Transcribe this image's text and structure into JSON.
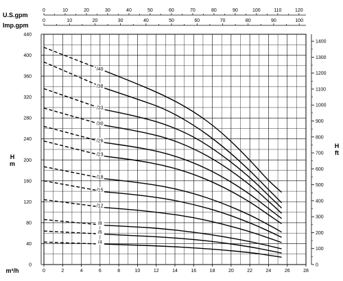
{
  "chart_data": {
    "type": "line",
    "grid": true,
    "xlabel": "m³/h",
    "ylabel_left": "H\nm",
    "ylabel_right": "H\nft",
    "x_ticks": [
      0,
      2,
      4,
      6,
      8,
      10,
      12,
      14,
      16,
      18,
      20,
      22,
      24,
      26,
      28
    ],
    "xlim": [
      0,
      28
    ],
    "y_left_ticks": [
      0,
      40,
      80,
      120,
      160,
      200,
      240,
      280,
      320,
      360,
      400,
      440
    ],
    "ylim_left": [
      0,
      440
    ],
    "y_right_ticks": [
      0,
      100,
      200,
      300,
      400,
      500,
      600,
      700,
      800,
      900,
      1000,
      1100,
      1200,
      1300,
      1400
    ],
    "ylim_right": [
      0,
      1443.6
    ],
    "top_axes": [
      {
        "label": "U.S.gpm",
        "ticks": [
          0,
          10,
          20,
          30,
          40,
          50,
          60,
          70,
          80,
          90,
          100,
          110,
          120
        ],
        "lim": [
          0,
          123.28
        ]
      },
      {
        "label": "Imp.gpm",
        "ticks": [
          0,
          10,
          20,
          30,
          40,
          50,
          60,
          70,
          80,
          90,
          100
        ],
        "lim": [
          0,
          102.65
        ]
      }
    ],
    "series": [
      {
        "name": "/40",
        "x": [
          0,
          6.5,
          10,
          13,
          16,
          19,
          22,
          24,
          25.4
        ],
        "y": [
          415,
          370,
          345,
          322,
          293,
          253,
          200,
          160,
          138
        ],
        "dashed_until": 6.5
      },
      {
        "name": "/38",
        "x": [
          0,
          6.5,
          10,
          13,
          16,
          19,
          22,
          24,
          25.4
        ],
        "y": [
          387,
          337,
          316,
          297,
          267,
          228,
          180,
          143,
          118
        ],
        "dashed_until": 6.5
      },
      {
        "name": "/33",
        "x": [
          0,
          6.5,
          10,
          13,
          16,
          19,
          22,
          24,
          25.4
        ],
        "y": [
          336,
          296,
          283,
          268,
          245,
          210,
          167,
          132,
          108
        ],
        "dashed_until": 6.5
      },
      {
        "name": "/30",
        "x": [
          0,
          6.5,
          10,
          13,
          16,
          19,
          22,
          24,
          25.4
        ],
        "y": [
          299,
          266,
          255,
          243,
          222,
          192,
          153,
          121,
          98
        ],
        "dashed_until": 6.5
      },
      {
        "name": "/26",
        "x": [
          0,
          6.5,
          10,
          13,
          16,
          19,
          22,
          24,
          25.4
        ],
        "y": [
          264,
          233,
          224,
          213,
          195,
          169,
          135,
          107,
          88
        ],
        "dashed_until": 6.5
      },
      {
        "name": "/23",
        "x": [
          0,
          6.5,
          10,
          13,
          16,
          19,
          22,
          24,
          25.4
        ],
        "y": [
          236,
          207,
          199,
          189,
          173,
          150,
          120,
          95,
          78
        ],
        "dashed_until": 6.5
      },
      {
        "name": "/18",
        "x": [
          0,
          6.5,
          10,
          13,
          16,
          19,
          22,
          24,
          25.4
        ],
        "y": [
          187,
          164,
          157,
          149,
          136,
          118,
          95,
          76,
          62
        ],
        "dashed_until": 6.5
      },
      {
        "name": "/15",
        "x": [
          0,
          6.5,
          10,
          13,
          16,
          19,
          22,
          24,
          25.4
        ],
        "y": [
          160,
          139,
          133,
          126,
          115,
          100,
          80,
          64,
          52
        ],
        "dashed_until": 6.5
      },
      {
        "name": "/12",
        "x": [
          0,
          6.5,
          10,
          13,
          16,
          19,
          22,
          24,
          25.4
        ],
        "y": [
          124,
          109,
          104,
          98,
          90,
          78,
          63,
          51,
          42
        ],
        "dashed_until": 6.5
      },
      {
        "name": "/8",
        "x": [
          0,
          6.5,
          10,
          13,
          16,
          19,
          22,
          24,
          25.4
        ],
        "y": [
          86,
          75,
          72,
          68,
          62,
          54,
          44,
          36,
          30
        ],
        "dashed_until": 6.5
      },
      {
        "name": "/6",
        "x": [
          0,
          6.5,
          10,
          13,
          16,
          19,
          22,
          24,
          25.4
        ],
        "y": [
          64,
          58,
          55,
          52,
          48,
          42,
          34,
          27,
          22
        ],
        "dashed_until": 6.5
      },
      {
        "name": "/4",
        "x": [
          0,
          6.5,
          10,
          13,
          16,
          19,
          22,
          24,
          25.4
        ],
        "y": [
          43,
          39,
          37,
          35,
          32,
          28,
          23,
          18,
          14
        ],
        "dashed_until": 6.5
      }
    ]
  }
}
